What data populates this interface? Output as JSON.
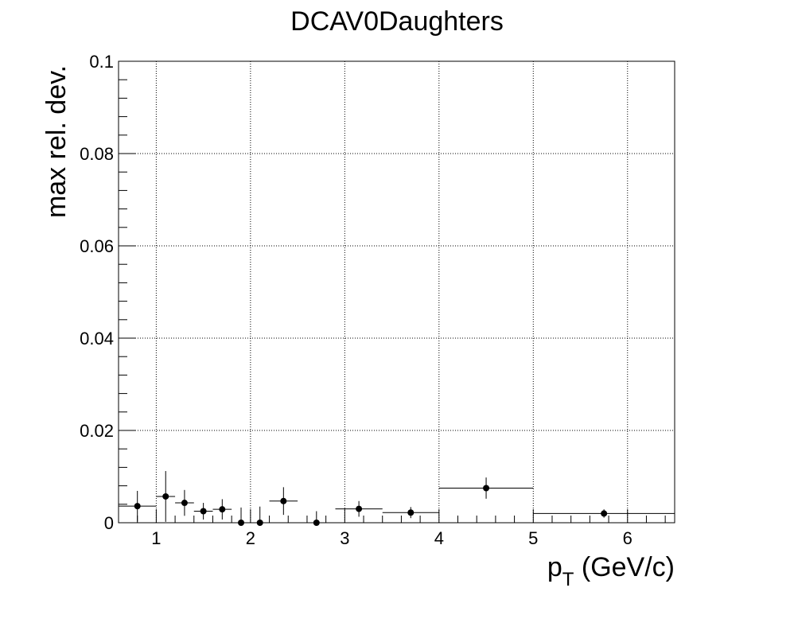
{
  "chart_data": {
    "type": "scatter",
    "title": "DCAV0Daughters",
    "xlabel_main": "p",
    "xlabel_sub": "T",
    "xlabel_rest": " (GeV/c)",
    "ylabel": "max rel. dev.",
    "xlim": [
      0.6,
      6.5
    ],
    "ylim": [
      0,
      0.1
    ],
    "grid": true,
    "x_ticks": [
      {
        "value": 1,
        "label": "1"
      },
      {
        "value": 2,
        "label": "2"
      },
      {
        "value": 3,
        "label": "3"
      },
      {
        "value": 4,
        "label": "4"
      },
      {
        "value": 5,
        "label": "5"
      },
      {
        "value": 6,
        "label": "6"
      }
    ],
    "y_ticks": [
      {
        "value": 0,
        "label": "0"
      },
      {
        "value": 0.02,
        "label": "0.02"
      },
      {
        "value": 0.04,
        "label": "0.04"
      },
      {
        "value": 0.06,
        "label": "0.06"
      },
      {
        "value": 0.08,
        "label": "0.08"
      },
      {
        "value": 0.1,
        "label": "0.1"
      }
    ],
    "points": [
      {
        "x": 0.8,
        "xerr": 0.2,
        "y": 0.0036,
        "yerr": 0.0033
      },
      {
        "x": 1.1,
        "xerr": 0.1,
        "y": 0.0057,
        "yerr": 0.0055
      },
      {
        "x": 1.3,
        "xerr": 0.1,
        "y": 0.0043,
        "yerr": 0.0028
      },
      {
        "x": 1.5,
        "xerr": 0.1,
        "y": 0.0025,
        "yerr": 0.0018
      },
      {
        "x": 1.7,
        "xerr": 0.1,
        "y": 0.0029,
        "yerr": 0.0022
      },
      {
        "x": 1.9,
        "xerr": 0.1,
        "y": 0.0,
        "yerr": 0.0033
      },
      {
        "x": 2.1,
        "xerr": 0.1,
        "y": 0.0,
        "yerr": 0.0035
      },
      {
        "x": 2.35,
        "xerr": 0.15,
        "y": 0.0047,
        "yerr": 0.003
      },
      {
        "x": 2.7,
        "xerr": 0.2,
        "y": 0.0,
        "yerr": 0.0025
      },
      {
        "x": 3.15,
        "xerr": 0.25,
        "y": 0.003,
        "yerr": 0.0017
      },
      {
        "x": 3.7,
        "xerr": 0.3,
        "y": 0.0022,
        "yerr": 0.0012
      },
      {
        "x": 4.5,
        "xerr": 0.5,
        "y": 0.0075,
        "yerr": 0.0023
      },
      {
        "x": 5.75,
        "xerr": 0.75,
        "y": 0.002,
        "yerr": 0.0009
      }
    ]
  }
}
